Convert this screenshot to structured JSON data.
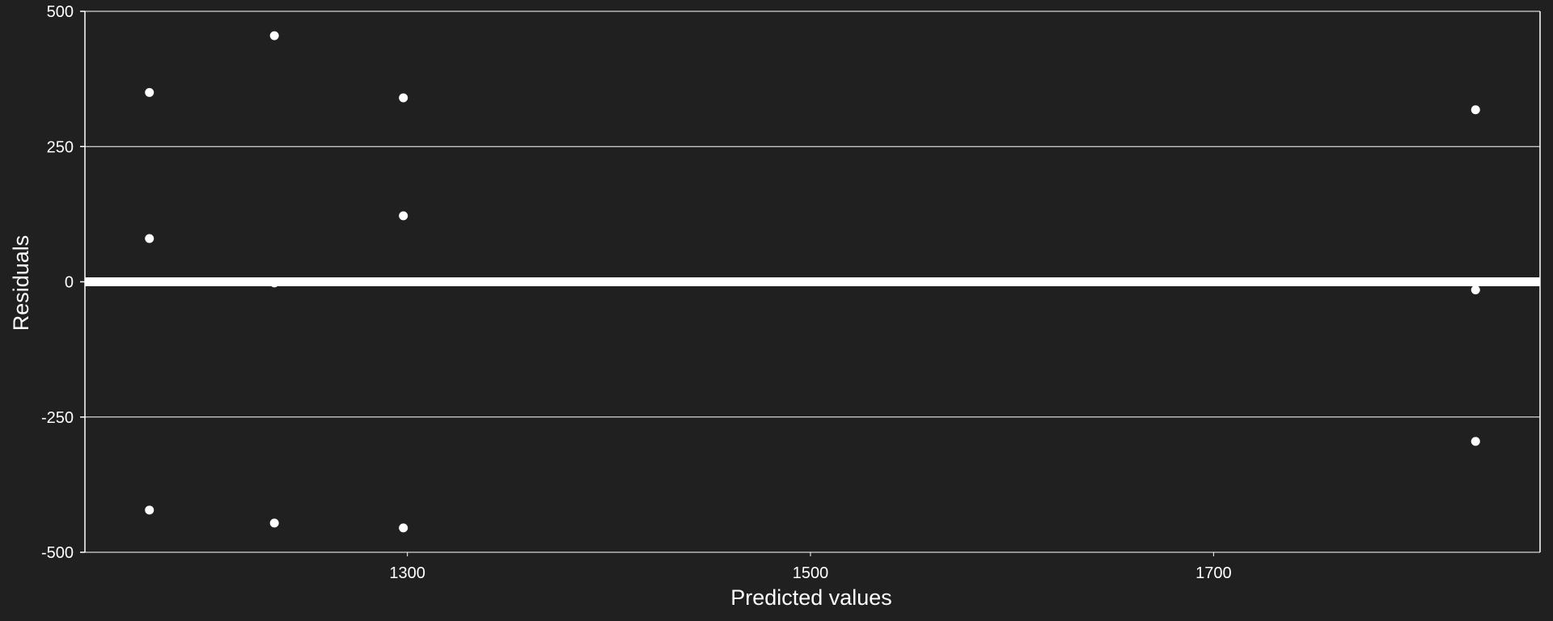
{
  "chart_data": {
    "type": "scatter",
    "title": "",
    "xlabel": "Predicted values",
    "ylabel": "Residuals",
    "xlim": [
      1140,
      1862
    ],
    "ylim": [
      -500,
      500
    ],
    "x_ticks": [
      1300,
      1500,
      1700
    ],
    "y_ticks": [
      -500,
      -250,
      0,
      250,
      500
    ],
    "y_tick_labels": [
      "-500",
      "-250",
      "0",
      "250",
      "500"
    ],
    "grid": "horizontal",
    "reference_line": 0,
    "colors": {
      "background": "#202020",
      "points": "#ffffff",
      "grid": "#ffffff",
      "text": "#ffffff"
    },
    "points": [
      {
        "x": 1172,
        "y": 350
      },
      {
        "x": 1172,
        "y": 80
      },
      {
        "x": 1172,
        "y": -422
      },
      {
        "x": 1234,
        "y": 455
      },
      {
        "x": 1234,
        "y": -2
      },
      {
        "x": 1234,
        "y": -446
      },
      {
        "x": 1298,
        "y": 340
      },
      {
        "x": 1298,
        "y": 122
      },
      {
        "x": 1298,
        "y": -455
      },
      {
        "x": 1830,
        "y": 318
      },
      {
        "x": 1830,
        "y": -15
      },
      {
        "x": 1830,
        "y": -295
      }
    ]
  }
}
